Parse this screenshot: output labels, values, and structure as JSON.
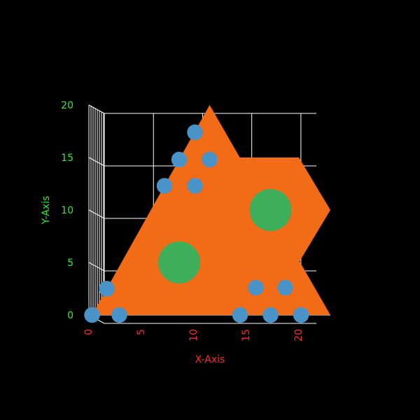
{
  "chart_data": {
    "type": "scatter",
    "xlabel": "X-Axis",
    "ylabel": "Y-Axis",
    "xlim": [
      0,
      23
    ],
    "ylim": [
      0,
      20
    ],
    "x_ticks": [
      0,
      5,
      10,
      15,
      20
    ],
    "y_ticks": [
      0,
      5,
      10,
      15,
      20
    ],
    "grid": true,
    "colors": {
      "background": "#000000",
      "shape_fill": "#f26b16",
      "small_circle": "#4a93c9",
      "large_circle": "#3fae5a",
      "grid": "#ffffff",
      "x_axis_text": "#ff2a2a",
      "y_axis_text": "#2eea2e"
    },
    "shapes": [
      {
        "kind": "triangle",
        "vertices": [
          [
            0.3,
            0
          ],
          [
            11.5,
            20
          ],
          [
            23,
            0
          ]
        ]
      },
      {
        "kind": "hexagon",
        "vertices": [
          [
            11.5,
            15
          ],
          [
            20,
            15
          ],
          [
            23,
            10
          ],
          [
            20,
            5
          ],
          [
            11.5,
            5
          ],
          [
            8.6,
            10
          ]
        ]
      }
    ],
    "series": [
      {
        "values": [
          {
            "x": 0.3,
            "y": 0,
            "r": 0.75
          },
          {
            "x": 1.7,
            "y": 2.5,
            "r": 0.75
          },
          {
            "x": 2.9,
            "y": 0,
            "r": 0.75
          },
          {
            "x": 7.2,
            "y": 12.3,
            "r": 0.75
          },
          {
            "x": 8.6,
            "y": 14.8,
            "r": 0.75
          },
          {
            "x": 10.1,
            "y": 12.3,
            "r": 0.75
          },
          {
            "x": 10.1,
            "y": 17.4,
            "r": 0.75
          },
          {
            "x": 11.5,
            "y": 14.8,
            "r": 0.75
          },
          {
            "x": 14.4,
            "y": 0,
            "r": 0.75
          },
          {
            "x": 15.9,
            "y": 2.6,
            "r": 0.75
          },
          {
            "x": 17.3,
            "y": 0,
            "r": 0.75
          },
          {
            "x": 18.7,
            "y": 2.6,
            "r": 0.75
          },
          {
            "x": 20.2,
            "y": 0,
            "r": 0.75
          }
        ]
      },
      {
        "values": [
          {
            "x": 8.6,
            "y": 5,
            "r": 2
          },
          {
            "x": 17.3,
            "y": 10,
            "r": 2
          }
        ]
      }
    ]
  }
}
